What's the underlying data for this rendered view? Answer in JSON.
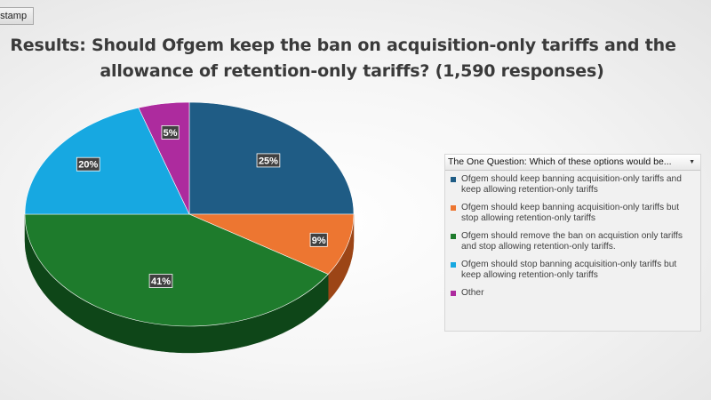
{
  "header_tab": {
    "label": "estamp"
  },
  "title": {
    "line1": "Results: Should Ofgem keep the ban on acquisition-only tariffs and the",
    "line2": "allowance of retention-only tariffs? (1,590 responses)"
  },
  "legend": {
    "header": "The One Question: Which of these options would be...",
    "dropdown_icon": "dropdown-arrow-icon"
  },
  "chart_data": {
    "type": "pie",
    "title": "Results: Should Ofgem keep the ban on acquisition-only tariffs and the allowance of retention-only tariffs? (1,590 responses)",
    "style": "3d-tilted",
    "legend_position": "right",
    "slices": [
      {
        "label_lines": [
          "Ofgem should keep banning acquisition-only tariffs and",
          "keep allowing retention-only tariffs"
        ],
        "value": 25,
        "display": "25%",
        "color": "#1f5c85",
        "dark": "#0f344d"
      },
      {
        "label_lines": [
          "Ofgem should keep banning acquisition-only tariffs but",
          "stop allowing retention-only tariffs"
        ],
        "value": 9,
        "display": "9%",
        "color": "#ed7631",
        "dark": "#9c4516"
      },
      {
        "label_lines": [
          "Ofgem should remove the ban on acquistion only tariffs",
          "and stop allowing retention-only tariffs."
        ],
        "value": 41,
        "display": "41%",
        "color": "#1e7b2c",
        "dark": "#0e4618"
      },
      {
        "label_lines": [
          "Ofgem should stop banning acquisition-only tariffs but",
          "keep allowing retention-only tariffs"
        ],
        "value": 20,
        "display": "20%",
        "color": "#17a8e1",
        "dark": "#0b6a90"
      },
      {
        "label_lines": [
          "Other"
        ],
        "value": 5,
        "display": "5%",
        "color": "#ad2b9e",
        "dark": "#6a1862"
      }
    ]
  }
}
